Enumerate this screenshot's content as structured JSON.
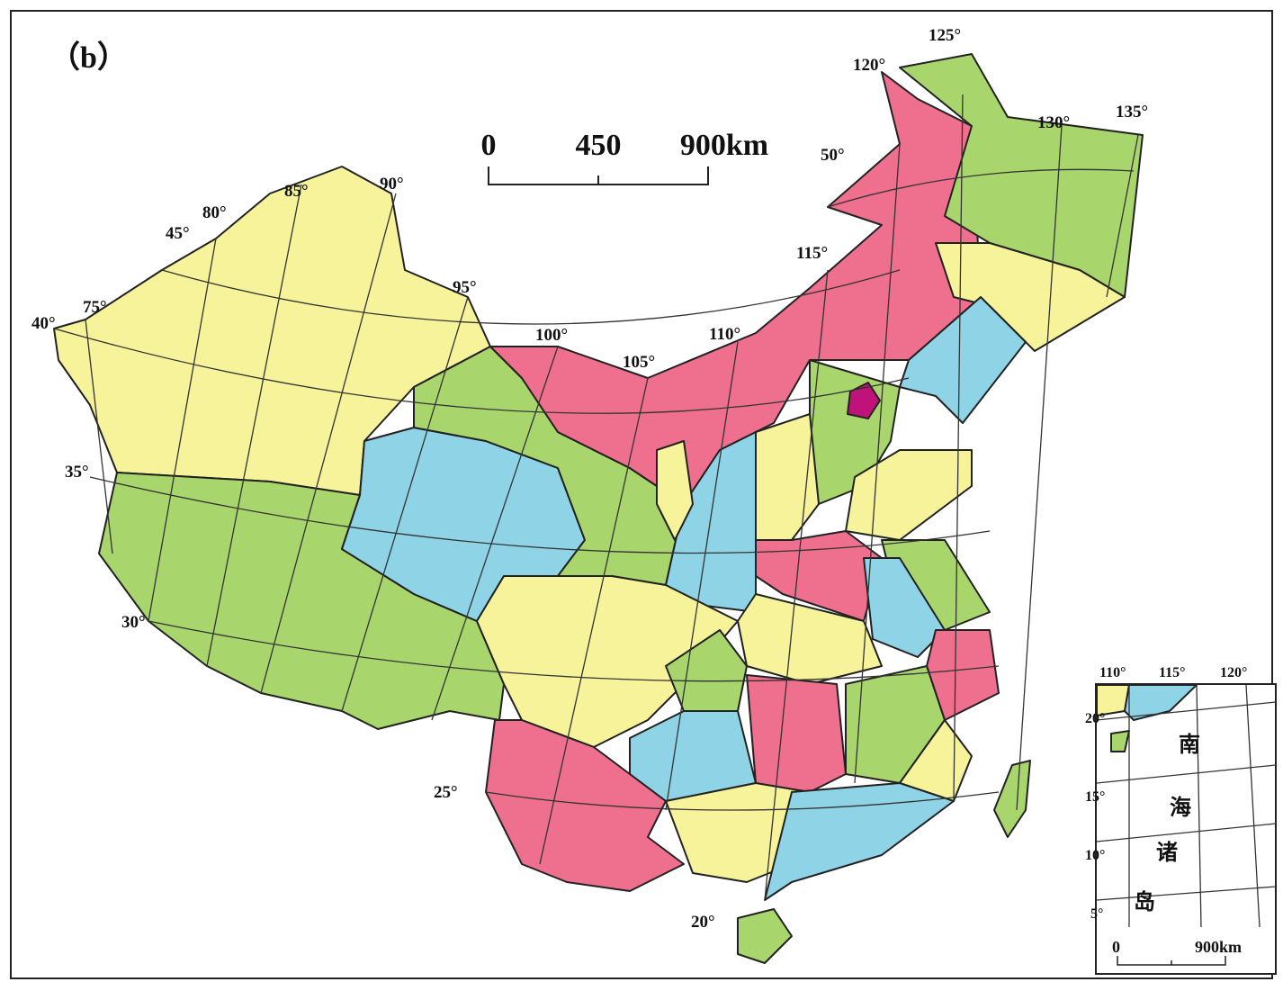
{
  "panel_label": "（b）",
  "scale_bar": {
    "labels": [
      "0",
      "450",
      "900km"
    ]
  },
  "longitude_labels": [
    "75°",
    "80°",
    "85°",
    "90°",
    "95°",
    "100°",
    "105°",
    "110°",
    "115°",
    "120°",
    "125°",
    "130°",
    "135°"
  ],
  "latitude_labels": [
    "20°",
    "25°",
    "30°",
    "35°",
    "40°",
    "45°",
    "50°"
  ],
  "inset": {
    "longitude_labels": [
      "110°",
      "115°",
      "120°"
    ],
    "latitude_labels": [
      "20°",
      "15°",
      "10°",
      "5°"
    ],
    "title_chars": [
      "南",
      "海",
      "诸",
      "岛"
    ],
    "scale_labels": [
      "0",
      "900km"
    ]
  }
}
